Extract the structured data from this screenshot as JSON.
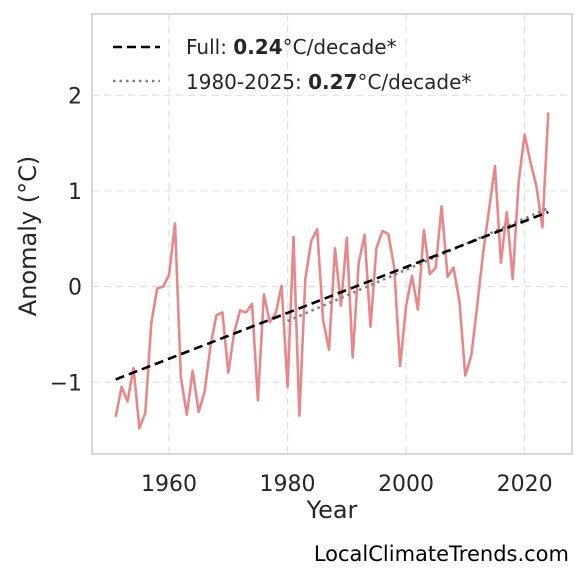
{
  "chart_data": {
    "type": "line",
    "xlabel": "Year",
    "ylabel": "Anomaly (°C)",
    "xlim": [
      1947,
      2028
    ],
    "ylim": [
      -1.75,
      2.85
    ],
    "xticks": [
      1960,
      1980,
      2000,
      2020
    ],
    "yticks": [
      -1,
      0,
      1,
      2
    ],
    "ytick_labels": [
      "−1",
      "0",
      "1",
      "2"
    ],
    "grid": true,
    "legend_position": "top-left",
    "colors": {
      "series": "#e8878a",
      "full_trend": "#000000",
      "recent_trend": "#808080",
      "grid": "#e0e0e0",
      "frame": "#cccccc"
    },
    "series": [
      {
        "x": [
          1951,
          1952,
          1953,
          1954,
          1955,
          1956,
          1957,
          1958,
          1959,
          1960,
          1961,
          1962,
          1963,
          1964,
          1965,
          1966,
          1967,
          1968,
          1969,
          1970,
          1971,
          1972,
          1973,
          1974,
          1975,
          1976,
          1977,
          1978,
          1979,
          1980,
          1981,
          1982,
          1983,
          1984,
          1985,
          1986,
          1987,
          1988,
          1989,
          1990,
          1991,
          1992,
          1993,
          1994,
          1995,
          1996,
          1997,
          1998,
          1999,
          2000,
          2001,
          2002,
          2003,
          2004,
          2005,
          2006,
          2007,
          2008,
          2009,
          2010,
          2011,
          2012,
          2013,
          2014,
          2015,
          2016,
          2017,
          2018,
          2019,
          2020,
          2021,
          2022,
          2023,
          2024
        ],
        "y": [
          -1.36,
          -1.05,
          -1.2,
          -0.85,
          -1.48,
          -1.32,
          -0.38,
          -0.02,
          0.0,
          0.12,
          0.66,
          -0.95,
          -1.34,
          -0.88,
          -1.31,
          -1.1,
          -0.62,
          -0.3,
          -0.27,
          -0.9,
          -0.48,
          -0.25,
          -0.27,
          -0.18,
          -1.19,
          -0.08,
          -0.37,
          -0.28,
          0.01,
          -1.05,
          0.52,
          -1.35,
          0.08,
          0.48,
          0.6,
          -0.35,
          -0.66,
          0.4,
          -0.2,
          0.51,
          -0.74,
          0.25,
          0.54,
          -0.42,
          0.4,
          0.58,
          0.55,
          0.2,
          -0.83,
          -0.2,
          0.11,
          -0.24,
          0.59,
          0.13,
          0.2,
          0.84,
          0.1,
          0.2,
          -0.15,
          -0.93,
          -0.72,
          -0.2,
          0.35,
          0.8,
          1.26,
          0.25,
          0.78,
          0.08,
          1.1,
          1.59,
          1.3,
          1.05,
          0.62,
          1.82
        ]
      }
    ],
    "trends": [
      {
        "label": "Full: ",
        "value": "0.24",
        "unit": "°C/decade*",
        "x": [
          1951,
          2024
        ],
        "y": [
          -0.97,
          0.78
        ]
      },
      {
        "label": "1980-2025: ",
        "value": "0.27",
        "unit": "°C/decade*",
        "x": [
          1980,
          2024
        ],
        "y": [
          -0.36,
          0.82
        ]
      }
    ]
  },
  "watermark": "LocalClimateTrends.com"
}
